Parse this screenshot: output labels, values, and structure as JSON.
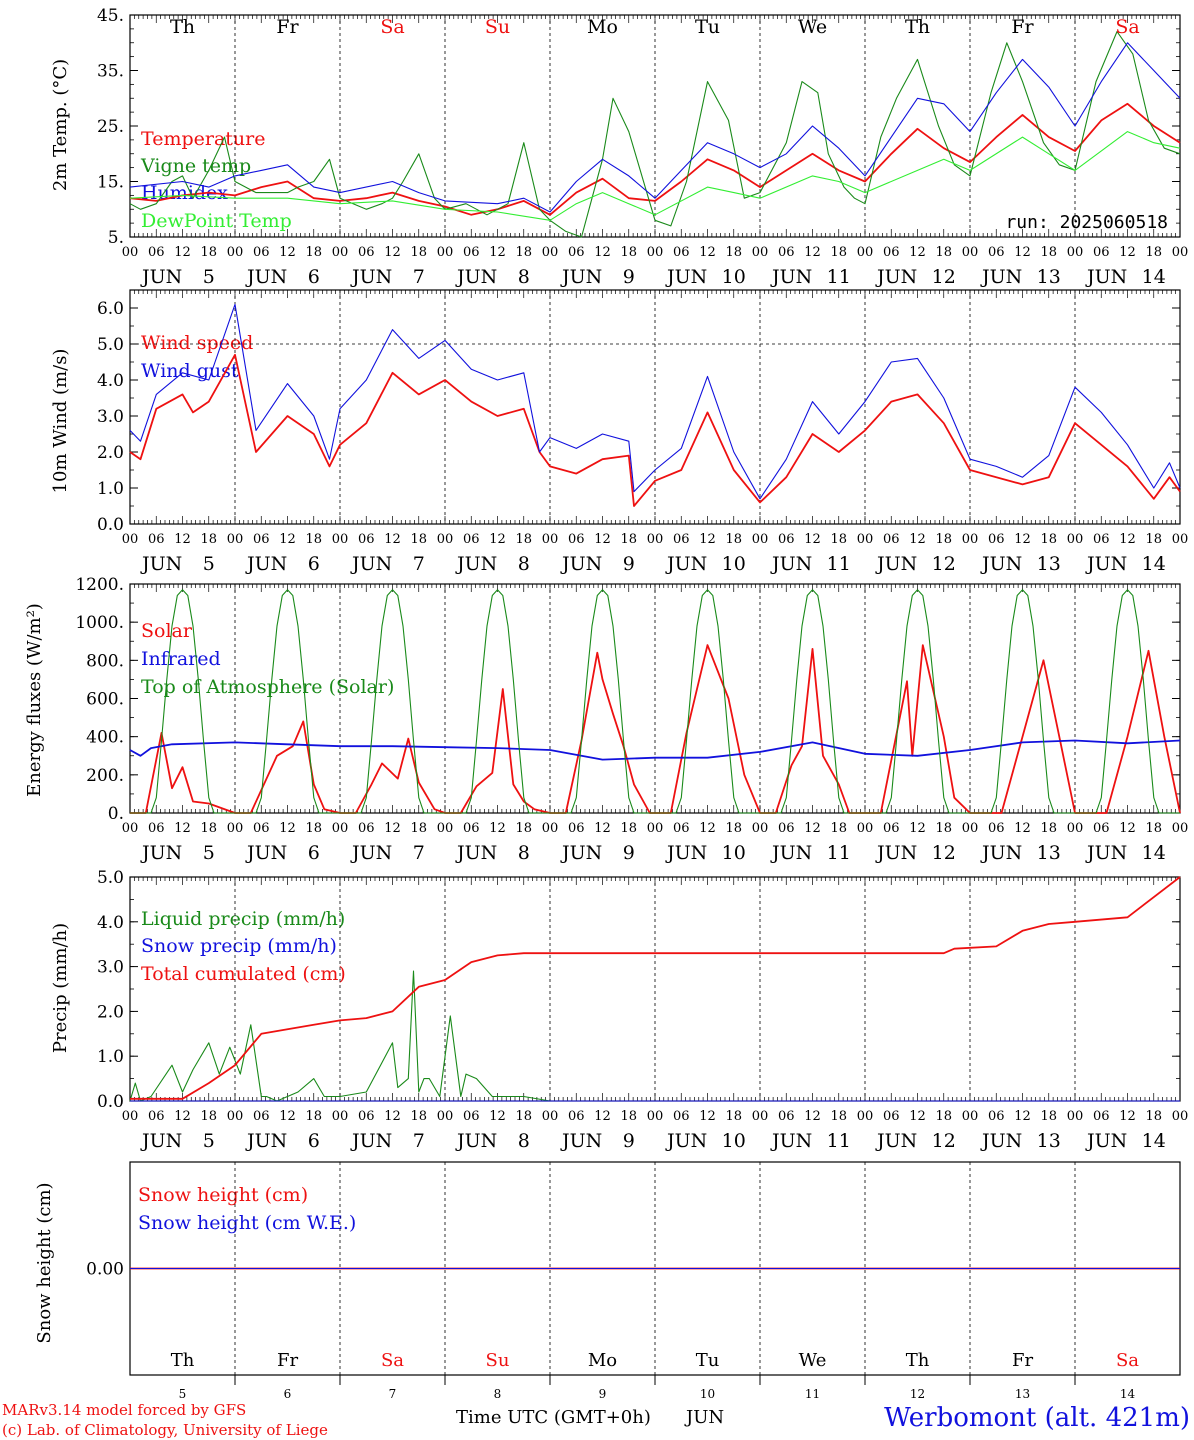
{
  "colors": {
    "red": "#ee1111",
    "green": "#1a8a1a",
    "lightgreen": "#33ee33",
    "blue": "#1111dd",
    "black": "#000000"
  },
  "days": [
    {
      "name": "Th",
      "num": "5",
      "weekend": false
    },
    {
      "name": "Fr",
      "num": "6",
      "weekend": false
    },
    {
      "name": "Sa",
      "num": "7",
      "weekend": true
    },
    {
      "name": "Su",
      "num": "8",
      "weekend": true
    },
    {
      "name": "Mo",
      "num": "9",
      "weekend": false
    },
    {
      "name": "Tu",
      "num": "10",
      "weekend": false
    },
    {
      "name": "We",
      "num": "11",
      "weekend": false
    },
    {
      "name": "Th",
      "num": "12",
      "weekend": false
    },
    {
      "name": "Fr",
      "num": "13",
      "weekend": false
    },
    {
      "name": "Sa",
      "num": "14",
      "weekend": true
    }
  ],
  "month": "JUN",
  "hour_ticks": [
    "00",
    "06",
    "12",
    "18"
  ],
  "run_label": "run: 2025060518",
  "footer": {
    "credit1": "MARv3.14 model forced by GFS",
    "credit2": "(c) Lab. of Climatology, University of Liege",
    "xlabel": "Time UTC (GMT+0h)",
    "month": "JUN",
    "station": "Werbomont (alt. 421m)"
  },
  "chart_data": [
    {
      "type": "line",
      "ylabel": "2m Temp. (°C)",
      "ylim": [
        5,
        45
      ],
      "yticks": [
        "5.",
        "15.",
        "25.",
        "35.",
        "45."
      ],
      "x_units": "days since 2025-06-05 00 UTC",
      "series": [
        {
          "name": "Temperature",
          "color": "red",
          "x": [
            0,
            0.25,
            0.5,
            0.75,
            1,
            1.25,
            1.5,
            1.75,
            2,
            2.25,
            2.5,
            2.75,
            3,
            3.25,
            3.5,
            3.75,
            4,
            4.25,
            4.5,
            4.75,
            5,
            5.25,
            5.5,
            5.75,
            6,
            6.25,
            6.5,
            6.75,
            7,
            7.25,
            7.5,
            7.75,
            8,
            8.25,
            8.5,
            8.75,
            9,
            9.25,
            9.5,
            9.75,
            10
          ],
          "y": [
            12,
            11.5,
            12.5,
            13,
            12.5,
            14,
            15,
            12,
            11.5,
            12,
            13,
            11.5,
            10.5,
            9,
            10,
            11.5,
            9,
            13,
            15.5,
            12,
            11.5,
            15,
            19,
            17,
            14,
            17,
            20,
            17,
            15,
            20,
            24.5,
            21,
            18.5,
            23,
            27,
            23,
            20.5,
            26,
            29,
            25,
            22
          ]
        },
        {
          "name": "Vigne temp",
          "color": "green",
          "x": [
            0,
            0.1,
            0.25,
            0.4,
            0.5,
            0.6,
            0.75,
            0.9,
            1,
            1.2,
            1.5,
            1.6,
            1.75,
            1.9,
            2,
            2.25,
            2.4,
            2.5,
            2.6,
            2.75,
            2.9,
            3,
            3.2,
            3.4,
            3.5,
            3.6,
            3.75,
            3.9,
            4,
            4.15,
            4.3,
            4.5,
            4.6,
            4.75,
            5,
            5.15,
            5.3,
            5.5,
            5.7,
            5.85,
            6,
            6.25,
            6.4,
            6.55,
            6.65,
            6.8,
            6.9,
            7,
            7.15,
            7.3,
            7.5,
            7.7,
            7.85,
            8,
            8.2,
            8.35,
            8.5,
            8.7,
            8.85,
            9,
            9.2,
            9.4,
            9.55,
            9.7,
            9.85,
            10
          ],
          "y": [
            11,
            10,
            11,
            15,
            16,
            12,
            17,
            23,
            15,
            13,
            13,
            14,
            15,
            19,
            12,
            10,
            11,
            12,
            15,
            20,
            12,
            10,
            11,
            9,
            10,
            11,
            22,
            10,
            8,
            6,
            5,
            19,
            30,
            24,
            8,
            7,
            15,
            33,
            26,
            12,
            13,
            22,
            33,
            31,
            20,
            14,
            12,
            11,
            23,
            30,
            37,
            25,
            18,
            16,
            31,
            40,
            33,
            22,
            18,
            17,
            33,
            42,
            38,
            26,
            21,
            20
          ]
        },
        {
          "name": "Humidex",
          "color": "blue",
          "x": [
            0,
            0.5,
            0.75,
            1,
            1.25,
            1.5,
            1.75,
            2,
            2.5,
            2.75,
            3,
            3.5,
            3.75,
            4,
            4.25,
            4.5,
            4.75,
            5,
            5.25,
            5.5,
            5.75,
            6,
            6.25,
            6.5,
            6.75,
            7,
            7.25,
            7.5,
            7.75,
            8,
            8.25,
            8.5,
            8.75,
            9,
            9.25,
            9.5,
            9.75,
            10
          ],
          "y": [
            14,
            15,
            14,
            16,
            17,
            18,
            14,
            13,
            15,
            13,
            11.5,
            11,
            12,
            9.5,
            15,
            19,
            16,
            12,
            17,
            22,
            20,
            17.5,
            20,
            25,
            21,
            16,
            23,
            30,
            29,
            24,
            31,
            37,
            32,
            25,
            33,
            40,
            35,
            30
          ]
        },
        {
          "name": "DewPoint Temp",
          "color": "lightgreen",
          "x": [
            0,
            0.5,
            1,
            1.5,
            2,
            2.5,
            3,
            3.5,
            4,
            4.25,
            4.5,
            4.75,
            5,
            5.5,
            5.75,
            6,
            6.5,
            6.75,
            7,
            7.5,
            7.75,
            8,
            8.5,
            8.75,
            9,
            9.5,
            9.75,
            10
          ],
          "y": [
            12,
            12.5,
            12,
            12,
            11,
            11.5,
            10,
            9.5,
            8,
            11,
            13,
            11,
            9,
            14,
            13,
            12,
            16,
            15,
            13,
            17,
            19,
            17,
            23,
            20,
            17,
            24,
            22,
            21
          ]
        }
      ]
    },
    {
      "type": "line",
      "ylabel": "10m Wind (m/s)",
      "ylim": [
        0,
        6.5
      ],
      "yticks": [
        "0.0",
        "1.0",
        "2.0",
        "3.0",
        "4.0",
        "5.0",
        "6.0"
      ],
      "series": [
        {
          "name": "Wind speed",
          "color": "red",
          "x": [
            0,
            0.1,
            0.25,
            0.5,
            0.6,
            0.75,
            1,
            1.2,
            1.5,
            1.75,
            1.9,
            2,
            2.25,
            2.5,
            2.75,
            3,
            3.25,
            3.5,
            3.75,
            3.9,
            4,
            4.25,
            4.5,
            4.75,
            4.8,
            5,
            5.25,
            5.5,
            5.75,
            6,
            6.25,
            6.5,
            6.75,
            7,
            7.25,
            7.5,
            7.75,
            8,
            8.25,
            8.5,
            8.75,
            9,
            9.25,
            9.5,
            9.75,
            9.9,
            10
          ],
          "y": [
            2,
            1.8,
            3.2,
            3.6,
            3.1,
            3.4,
            4.7,
            2,
            3,
            2.5,
            1.6,
            2.2,
            2.8,
            4.2,
            3.6,
            4,
            3.4,
            3,
            3.2,
            2,
            1.6,
            1.4,
            1.8,
            1.9,
            0.5,
            1.2,
            1.5,
            3.1,
            1.5,
            0.6,
            1.3,
            2.5,
            2,
            2.6,
            3.4,
            3.6,
            2.8,
            1.5,
            1.3,
            1.1,
            1.3,
            2.8,
            2.2,
            1.6,
            0.7,
            1.3,
            0.9
          ]
        },
        {
          "name": "Wind gust",
          "color": "blue",
          "x": [
            0,
            0.1,
            0.25,
            0.5,
            0.75,
            1,
            1.2,
            1.5,
            1.75,
            1.9,
            2,
            2.25,
            2.5,
            2.75,
            3,
            3.25,
            3.5,
            3.75,
            3.9,
            4,
            4.25,
            4.5,
            4.75,
            4.8,
            5,
            5.25,
            5.5,
            5.75,
            6,
            6.25,
            6.5,
            6.75,
            7,
            7.25,
            7.5,
            7.75,
            8,
            8.25,
            8.5,
            8.75,
            9,
            9.25,
            9.5,
            9.75,
            9.9,
            10
          ],
          "y": [
            2.6,
            2.3,
            3.6,
            4.2,
            4,
            6.1,
            2.6,
            3.9,
            3,
            1.8,
            3.2,
            4,
            5.4,
            4.6,
            5.1,
            4.3,
            4,
            4.2,
            2,
            2.4,
            2.1,
            2.5,
            2.3,
            0.9,
            1.5,
            2.1,
            4.1,
            2,
            0.7,
            1.8,
            3.4,
            2.5,
            3.4,
            4.5,
            4.6,
            3.5,
            1.8,
            1.6,
            1.3,
            1.9,
            3.8,
            3.1,
            2.2,
            1,
            1.7,
            1
          ]
        }
      ]
    },
    {
      "type": "line",
      "ylabel": "Energy fluxes (W/m²)",
      "ylim": [
        0,
        1200
      ],
      "yticks": [
        "0.",
        "200.",
        "400.",
        "600.",
        "800.",
        "1000.",
        "1200."
      ],
      "series": [
        {
          "name": "Solar",
          "color": "red",
          "x": [
            0,
            0.15,
            0.3,
            0.4,
            0.5,
            0.6,
            0.75,
            1,
            1.15,
            1.4,
            1.55,
            1.65,
            1.75,
            1.85,
            2,
            2.15,
            2.3,
            2.4,
            2.55,
            2.65,
            2.75,
            2.9,
            3,
            3.15,
            3.3,
            3.45,
            3.55,
            3.65,
            3.75,
            3.85,
            4,
            4.15,
            4.3,
            4.45,
            4.5,
            4.6,
            4.7,
            4.8,
            4.95,
            5,
            5.15,
            5.3,
            5.5,
            5.7,
            5.85,
            6,
            6.15,
            6.3,
            6.4,
            6.5,
            6.6,
            6.75,
            6.85,
            7,
            7.15,
            7.4,
            7.45,
            7.55,
            7.75,
            7.85,
            8,
            8.15,
            8.3,
            8.5,
            8.7,
            8.85,
            9,
            9.15,
            9.3,
            9.5,
            9.7,
            9.85,
            10
          ],
          "y": [
            0,
            0,
            420,
            130,
            240,
            60,
            50,
            0,
            0,
            300,
            350,
            480,
            150,
            20,
            0,
            0,
            150,
            260,
            180,
            390,
            160,
            20,
            0,
            0,
            140,
            210,
            650,
            150,
            60,
            20,
            0,
            0,
            380,
            840,
            700,
            520,
            350,
            150,
            0,
            0,
            0,
            420,
            880,
            600,
            200,
            0,
            0,
            250,
            350,
            860,
            300,
            150,
            0,
            0,
            0,
            690,
            300,
            880,
            400,
            80,
            0,
            0,
            0,
            400,
            800,
            400,
            0,
            0,
            0,
            400,
            850,
            400,
            0
          ]
        },
        {
          "name": "Infrared",
          "color": "blue",
          "x": [
            0,
            0.1,
            0.2,
            0.4,
            1,
            1.5,
            2,
            2.5,
            3,
            3.5,
            4,
            4.5,
            5,
            5.5,
            6,
            6.5,
            7,
            7.5,
            8,
            8.5,
            9,
            9.5,
            10
          ],
          "y": [
            330,
            300,
            340,
            360,
            370,
            360,
            350,
            350,
            345,
            340,
            330,
            280,
            290,
            290,
            320,
            370,
            310,
            300,
            330,
            370,
            380,
            365,
            380
          ]
        },
        {
          "name": "Top of Atmosphere (Solar)",
          "color": "green",
          "x": [
            0,
            0.05,
            0.1,
            0.15,
            0.2,
            0.25,
            0.3,
            0.35,
            0.4,
            0.45,
            0.5,
            0.55,
            0.6,
            0.65,
            0.7,
            0.75,
            0.8,
            0.85,
            0.9,
            0.95,
            1
          ],
          "y": [
            0,
            0,
            0,
            0,
            0,
            80,
            380,
            700,
            980,
            1140,
            1170,
            1140,
            980,
            700,
            380,
            80,
            0,
            0,
            0,
            0,
            0
          ],
          "periodic_daily": true
        }
      ]
    },
    {
      "type": "line",
      "ylabel": "Precip (mm/h)",
      "ylim": [
        0,
        5
      ],
      "yticks": [
        "0.0",
        "1.0",
        "2.0",
        "3.0",
        "4.0",
        "5.0"
      ],
      "series": [
        {
          "name": "Liquid precip (mm/h)",
          "color": "green",
          "x": [
            0,
            0.05,
            0.1,
            0.2,
            0.4,
            0.5,
            0.6,
            0.75,
            0.85,
            0.95,
            1.05,
            1.15,
            1.25,
            1.3,
            1.4,
            1.6,
            1.75,
            1.85,
            2,
            2.25,
            2.5,
            2.55,
            2.65,
            2.7,
            2.75,
            2.8,
            2.85,
            2.95,
            3.05,
            3.15,
            3.2,
            3.3,
            3.45,
            3.55,
            3.75,
            4,
            10
          ],
          "y": [
            0,
            0.4,
            0,
            0.1,
            0.8,
            0.2,
            0.7,
            1.3,
            0.6,
            1.2,
            0.6,
            1.7,
            0.1,
            0.1,
            0,
            0.2,
            0.5,
            0.1,
            0.1,
            0.2,
            1.3,
            0.3,
            0.5,
            2.9,
            0.2,
            0.5,
            0.5,
            0.1,
            1.9,
            0.1,
            0.6,
            0.5,
            0.1,
            0.1,
            0.1,
            0,
            0
          ]
        },
        {
          "name": "Snow precip (mm/h)",
          "color": "blue",
          "x": [
            0,
            10
          ],
          "y": [
            0,
            0
          ]
        },
        {
          "name": "Total cumulated (cm)",
          "color": "red",
          "x": [
            0,
            0.5,
            0.75,
            1,
            1.25,
            1.5,
            1.75,
            2,
            2.25,
            2.5,
            2.75,
            3,
            3.25,
            3.5,
            3.75,
            4,
            5,
            6,
            7,
            7.75,
            7.85,
            8.25,
            8.5,
            8.75,
            9,
            9.5,
            10
          ],
          "y": [
            0.05,
            0.05,
            0.4,
            0.8,
            1.5,
            1.6,
            1.7,
            1.8,
            1.85,
            2,
            2.55,
            2.7,
            3.1,
            3.25,
            3.3,
            3.3,
            3.3,
            3.3,
            3.3,
            3.3,
            3.4,
            3.45,
            3.8,
            3.95,
            4,
            4.1,
            5
          ]
        }
      ]
    },
    {
      "type": "line",
      "ylabel": "Snow height (cm)",
      "yticks": [
        "0.00"
      ],
      "series": [
        {
          "name": "Snow height (cm)",
          "color": "red",
          "x": [
            0,
            10
          ],
          "y": [
            0,
            0
          ]
        },
        {
          "name": "Snow height (cm W.E.)",
          "color": "blue",
          "x": [
            0,
            10
          ],
          "y": [
            0,
            0
          ]
        }
      ]
    }
  ]
}
